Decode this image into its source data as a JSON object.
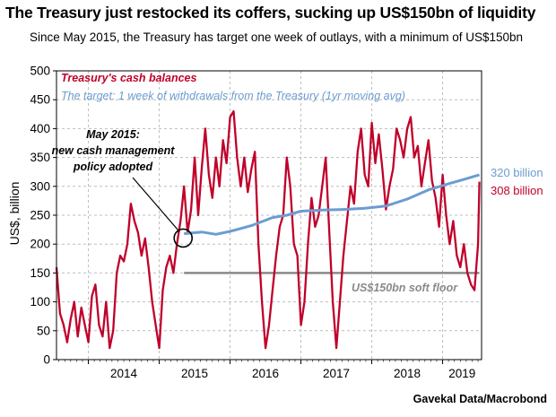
{
  "title": "The Treasury just restocked its coffers, sucking up US$150bn of liquidity",
  "subtitle": "Since May 2015, the Treasury has target one week of outlays, with a minimum of US$150bn",
  "source": "Gavekal Data/Macrobond",
  "colors": {
    "cash": "#c0002a",
    "target": "#6c9cd0",
    "floor": "#8a8a8a",
    "grid": "#bdbdbd"
  },
  "chart_data": {
    "type": "line",
    "ylabel": "US$, billion",
    "ylim": [
      0,
      500
    ],
    "yticks": [
      0,
      50,
      100,
      150,
      200,
      250,
      300,
      350,
      400,
      450,
      500
    ],
    "xlim": [
      2013.55,
      2019.55
    ],
    "xtick_labels": [
      "2014",
      "2015",
      "2016",
      "2017",
      "2018",
      "2019"
    ],
    "grid": true,
    "legend_position": "top-left",
    "series": [
      {
        "name": "Treasury's cash balances",
        "x": [
          2013.55,
          2013.6,
          2013.65,
          2013.7,
          2013.75,
          2013.8,
          2013.85,
          2013.9,
          2013.95,
          2014.0,
          2014.05,
          2014.1,
          2014.15,
          2014.2,
          2014.25,
          2014.3,
          2014.35,
          2014.4,
          2014.45,
          2014.5,
          2014.55,
          2014.6,
          2014.65,
          2014.7,
          2014.75,
          2014.8,
          2014.85,
          2014.9,
          2014.95,
          2015.0,
          2015.05,
          2015.1,
          2015.15,
          2015.2,
          2015.25,
          2015.3,
          2015.35,
          2015.4,
          2015.45,
          2015.5,
          2015.55,
          2015.6,
          2015.65,
          2015.7,
          2015.75,
          2015.8,
          2015.85,
          2015.9,
          2015.95,
          2016.0,
          2016.05,
          2016.1,
          2016.15,
          2016.2,
          2016.25,
          2016.3,
          2016.35,
          2016.4,
          2016.45,
          2016.5,
          2016.55,
          2016.6,
          2016.65,
          2016.7,
          2016.75,
          2016.8,
          2016.85,
          2016.9,
          2016.95,
          2017.0,
          2017.05,
          2017.1,
          2017.15,
          2017.2,
          2017.25,
          2017.3,
          2017.35,
          2017.4,
          2017.45,
          2017.5,
          2017.55,
          2017.6,
          2017.65,
          2017.7,
          2017.75,
          2017.8,
          2017.85,
          2017.9,
          2017.95,
          2018.0,
          2018.05,
          2018.1,
          2018.15,
          2018.2,
          2018.25,
          2018.3,
          2018.35,
          2018.4,
          2018.45,
          2018.5,
          2018.55,
          2018.6,
          2018.65,
          2018.7,
          2018.75,
          2018.8,
          2018.85,
          2018.9,
          2018.95,
          2019.0,
          2019.05,
          2019.1,
          2019.15,
          2019.2,
          2019.25,
          2019.3,
          2019.35,
          2019.4,
          2019.45,
          2019.5,
          2019.52
        ],
        "values": [
          160,
          80,
          60,
          30,
          70,
          100,
          40,
          90,
          60,
          30,
          110,
          130,
          60,
          40,
          100,
          20,
          50,
          150,
          180,
          170,
          200,
          270,
          240,
          220,
          180,
          210,
          160,
          100,
          60,
          20,
          120,
          160,
          180,
          150,
          200,
          240,
          300,
          220,
          260,
          350,
          250,
          330,
          400,
          320,
          280,
          350,
          300,
          380,
          340,
          420,
          430,
          350,
          300,
          350,
          290,
          330,
          360,
          200,
          100,
          20,
          60,
          120,
          180,
          230,
          250,
          350,
          300,
          200,
          180,
          60,
          100,
          200,
          280,
          230,
          250,
          300,
          350,
          220,
          100,
          20,
          100,
          180,
          240,
          300,
          270,
          360,
          400,
          320,
          300,
          410,
          340,
          390,
          330,
          260,
          300,
          330,
          400,
          380,
          350,
          400,
          420,
          350,
          370,
          300,
          340,
          380,
          310,
          280,
          230,
          320,
          250,
          200,
          240,
          180,
          160,
          200,
          150,
          130,
          120,
          200,
          308
        ]
      },
      {
        "name": "The target: 1 week of withdrawals from the Treasury (1yr moving avg)",
        "x": [
          2015.35,
          2015.6,
          2015.8,
          2016.0,
          2016.3,
          2016.6,
          2016.8,
          2017.0,
          2017.3,
          2017.6,
          2017.9,
          2018.2,
          2018.5,
          2018.8,
          2019.1,
          2019.3,
          2019.52
        ],
        "values": [
          218,
          221,
          217,
          222,
          232,
          246,
          250,
          257,
          259,
          260,
          262,
          266,
          278,
          294,
          305,
          312,
          320
        ]
      },
      {
        "name": "US$150bn soft floor",
        "x": [
          2015.35,
          2019.52
        ],
        "values": [
          150,
          150
        ]
      }
    ],
    "annotations": [
      {
        "text_lines": [
          "May 2015:",
          "new cash management",
          "policy adopted"
        ],
        "x": 2015.35,
        "y": 212
      },
      {
        "text": "320 billion",
        "series": "target"
      },
      {
        "text": "308 billion",
        "series": "cash"
      }
    ]
  }
}
